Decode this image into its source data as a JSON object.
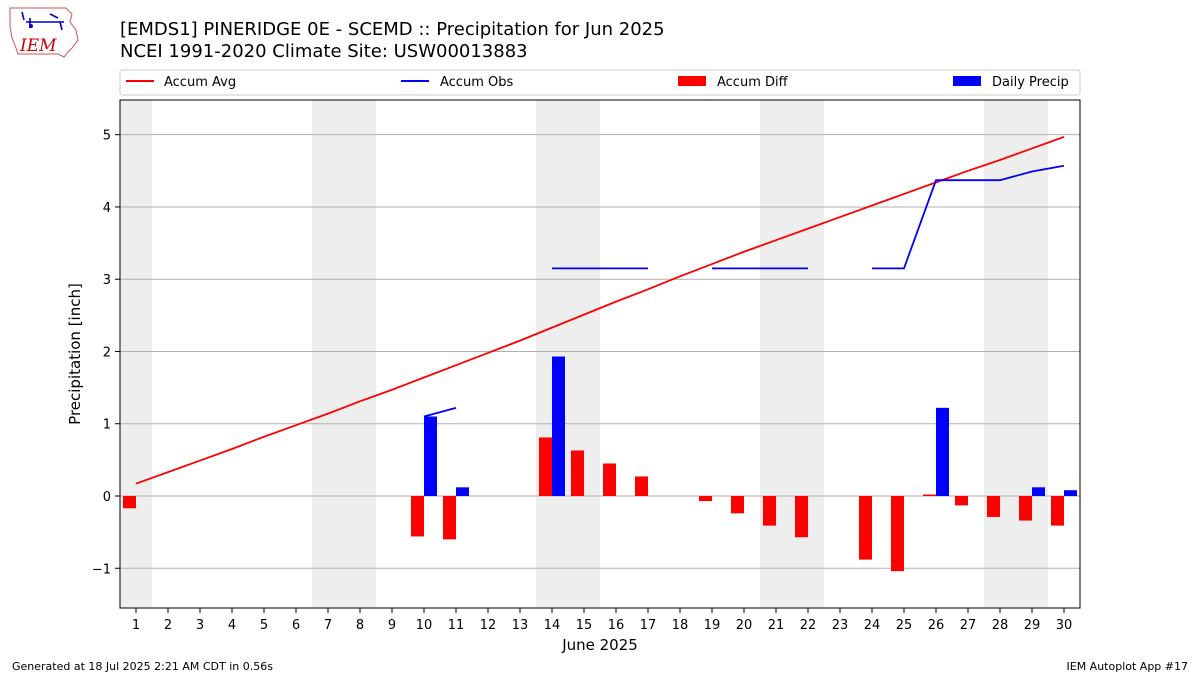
{
  "title_line1": "[EMDS1] PINERIDGE 0E - SCEMD :: Precipitation for Jun 2025",
  "title_line2": "NCEI 1991-2020 Climate Site: USW00013883",
  "logo_text": "IEM",
  "footer_left": "Generated at 18 Jul 2025 2:21 AM CDT in 0.56s",
  "footer_right": "IEM Autoplot App #17",
  "colors": {
    "avg": "#ff0000",
    "obs": "#0000ff",
    "diff": "#ff0000",
    "daily": "#0000ff",
    "weekend": "#eeeeee",
    "grid": "#b0b0b0"
  },
  "chart_data": {
    "type": "bar",
    "xlabel": "June 2025",
    "ylabel": "Precipitation [inch]",
    "xlim": [
      0.5,
      30.5
    ],
    "ylim": [
      -1.55,
      5.48
    ],
    "yticks": [
      -1,
      0,
      1,
      2,
      3,
      4,
      5
    ],
    "ytick_labels": [
      "−1",
      "0",
      "1",
      "2",
      "3",
      "4",
      "5"
    ],
    "days": [
      1,
      2,
      3,
      4,
      5,
      6,
      7,
      8,
      9,
      10,
      11,
      12,
      13,
      14,
      15,
      16,
      17,
      18,
      19,
      20,
      21,
      22,
      23,
      24,
      25,
      26,
      27,
      28,
      29,
      30
    ],
    "day_labels": [
      "1",
      "2",
      "3",
      "4",
      "5",
      "6",
      "7",
      "8",
      "9",
      "10",
      "11",
      "12",
      "13",
      "14",
      "15",
      "16",
      "17",
      "18",
      "19",
      "20",
      "21",
      "22",
      "23",
      "24",
      "25",
      "26",
      "27",
      "28",
      "29",
      "30"
    ],
    "weekend_days": [
      1,
      7,
      8,
      14,
      15,
      21,
      22,
      28,
      29
    ],
    "grid": true,
    "legend_position": "top",
    "legend": [
      "Accum Avg",
      "Accum Obs",
      "Accum Diff",
      "Daily Precip"
    ],
    "accum_avg": [
      0.17,
      0.33,
      0.49,
      0.65,
      0.82,
      0.98,
      1.14,
      1.31,
      1.47,
      1.64,
      1.81,
      1.98,
      2.15,
      2.33,
      2.51,
      2.69,
      2.86,
      3.04,
      3.21,
      3.38,
      3.54,
      3.7,
      3.86,
      4.02,
      4.18,
      4.34,
      4.5,
      4.65,
      4.81,
      4.97
    ],
    "accum_obs_segments": [
      [
        [
          10,
          1.1
        ],
        [
          11,
          1.22
        ]
      ],
      [
        [
          14,
          3.15
        ],
        [
          15,
          3.15
        ],
        [
          16,
          3.15
        ],
        [
          17,
          3.15
        ]
      ],
      [
        [
          19,
          3.15
        ],
        [
          20,
          3.15
        ],
        [
          21,
          3.15
        ],
        [
          22,
          3.15
        ]
      ],
      [
        [
          24,
          3.15
        ],
        [
          25,
          3.15
        ],
        [
          26,
          4.37
        ],
        [
          27,
          4.37
        ],
        [
          28,
          4.37
        ],
        [
          29,
          4.49
        ],
        [
          30,
          4.57
        ]
      ]
    ],
    "accum_diff": [
      [
        1,
        -0.17
      ],
      [
        10,
        -0.56
      ],
      [
        11,
        -0.6
      ],
      [
        14,
        0.81
      ],
      [
        15,
        0.63
      ],
      [
        16,
        0.45
      ],
      [
        17,
        0.27
      ],
      [
        19,
        -0.07
      ],
      [
        20,
        -0.24
      ],
      [
        21,
        -0.41
      ],
      [
        22,
        -0.57
      ],
      [
        24,
        -0.88
      ],
      [
        25,
        -1.04
      ],
      [
        26,
        0.02
      ],
      [
        27,
        -0.13
      ],
      [
        28,
        -0.29
      ],
      [
        29,
        -0.34
      ],
      [
        30,
        -0.41
      ]
    ],
    "daily_precip": [
      [
        10,
        1.1
      ],
      [
        11,
        0.12
      ],
      [
        14,
        1.93
      ],
      [
        26,
        1.22
      ],
      [
        29,
        0.12
      ],
      [
        30,
        0.08
      ]
    ]
  }
}
